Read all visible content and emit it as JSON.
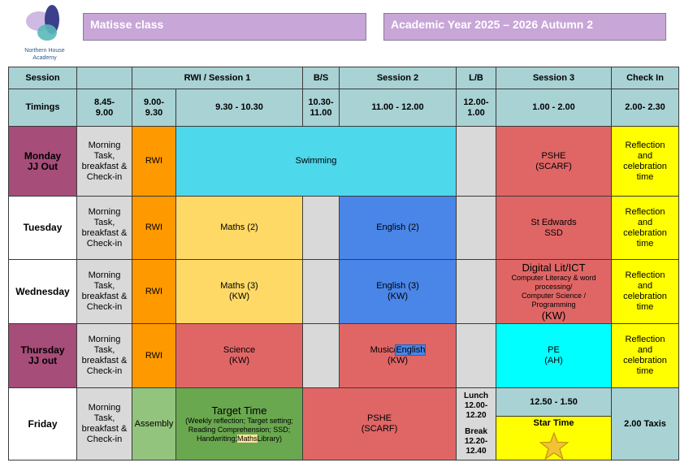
{
  "logo": {
    "org_line1": "Northern House",
    "org_line2": "Academy"
  },
  "header": {
    "class_name": "Matisse class",
    "year": "Academic Year 2025 – 2026 Autumn 2"
  },
  "columns": {
    "session": "Session",
    "rwi_session1": "RWI / Session 1",
    "bs": "B/S",
    "session2": "Session 2",
    "lb": "L/B",
    "session3": "Session 3",
    "checkin": "Check In"
  },
  "timings": {
    "label": "Timings",
    "t1": "8.45-\n9.00",
    "t2": "9.00-\n9.30",
    "t3": "9.30 - 10.30",
    "t4": "10.30-\n11.00",
    "t5": "11.00 - 12.00",
    "t6": "12.00-\n1.00",
    "t7": "1.00 - 2.00",
    "t8": "2.00- 2.30"
  },
  "common": {
    "morning": "Morning\nTask,\nbreakfast &\nCheck-in",
    "rwi": "RWI",
    "reflection": "Reflection\nand\ncelebration\ntime"
  },
  "monday": {
    "day": "Monday\nJJ Out",
    "swimming": "Swimming",
    "pshe": "PSHE\n(SCARF)"
  },
  "tuesday": {
    "day": "Tuesday",
    "maths": "Maths (2)",
    "english": "English (2)",
    "s3": "St Edwards\nSSD"
  },
  "wednesday": {
    "day": "Wednesday",
    "maths": "Maths (3)\n(KW)",
    "english": "English (3)\n(KW)",
    "s3_title": "Digital Lit/ICT",
    "s3_detail": "Computer Literacy & word\nprocessing/\nComputer Science /\nProgramming",
    "s3_kw": "(KW)"
  },
  "thursday": {
    "day": "Thursday\nJJ out",
    "science": "Science\n(KW)",
    "music": "Music/",
    "music_hl": "English",
    "music_kw": "(KW)",
    "pe": "PE\n(AH)"
  },
  "friday": {
    "day": "Friday",
    "assembly": "Assembly",
    "target_title": "Target Time",
    "target_detail_a": "(Weekly reflection; Target setting;\nReading Comprehension; SSD;\nHandwriting;",
    "target_detail_hl": "Maths",
    "target_detail_b": "Library)",
    "pshe": "PSHE\n(SCARF)",
    "lunch": "Lunch\n12.00-\n12.20",
    "break": "Break\n12.20-\n12.40",
    "s3_time": "12.50 - 1.50",
    "star_time": "Star Time",
    "taxis": "2.00 Taxis"
  },
  "colors": {
    "header_teal": "#a9d2d5",
    "title_purple": "#c8a6d8",
    "day_purple": "#a64d79",
    "rwi_orange": "#ff9900",
    "swim_cyan": "#4ed8ec",
    "red": "#e06666",
    "yellow": "#ffff00",
    "maths_gold": "#ffd966",
    "english_blue": "#4a86e8",
    "pe_aqua": "#00ffff",
    "assembly_green": "#93c47d",
    "target_green": "#6aa84f",
    "star_fill": "#f1c232"
  }
}
